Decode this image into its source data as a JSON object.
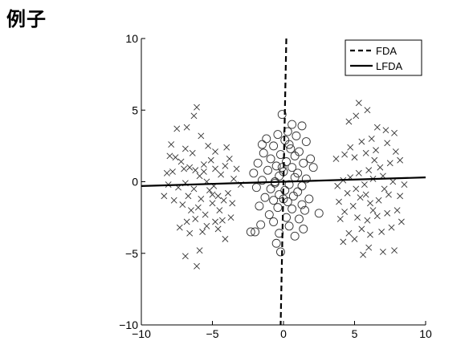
{
  "page": {
    "title": "例子"
  },
  "chart_data": {
    "type": "scatter",
    "title": "",
    "xlabel": "",
    "ylabel": "",
    "xlim": [
      -10,
      10
    ],
    "ylim": [
      -10,
      10
    ],
    "xticks": [
      -10,
      -5,
      0,
      5,
      10
    ],
    "yticks": [
      -10,
      -5,
      0,
      5,
      10
    ],
    "grid": false,
    "legend_position": "top-right",
    "lines": [
      {
        "name": "FDA",
        "style": "dashed",
        "points": [
          [
            0.2,
            10
          ],
          [
            -0.2,
            -10
          ]
        ]
      },
      {
        "name": "LFDA",
        "style": "solid",
        "points": [
          [
            -10,
            -0.3
          ],
          [
            10,
            0.3
          ]
        ]
      }
    ],
    "series": [
      {
        "marker": "x",
        "points": [
          [
            -7.5,
            3.7
          ],
          [
            -6.1,
            5.2
          ],
          [
            -6.3,
            4.6
          ],
          [
            -6.9,
            2.3
          ],
          [
            -7.6,
            1.7
          ],
          [
            -6.8,
            3.8
          ],
          [
            -5.8,
            3.2
          ],
          [
            -5.3,
            2.5
          ],
          [
            -4.8,
            2.1
          ],
          [
            -5.1,
            1.5
          ],
          [
            -5.6,
            1.2
          ],
          [
            -6.2,
            0.8
          ],
          [
            -7.0,
            0.9
          ],
          [
            -7.8,
            0.7
          ],
          [
            -8.2,
            0.6
          ],
          [
            -8.0,
            1.8
          ],
          [
            -7.2,
            1.4
          ],
          [
            -6.6,
            1.0
          ],
          [
            -5.9,
            0.4
          ],
          [
            -5.4,
            0.0
          ],
          [
            -4.9,
            -0.3
          ],
          [
            -4.4,
            0.5
          ],
          [
            -4.1,
            1.1
          ],
          [
            -3.8,
            1.6
          ],
          [
            -4.0,
            2.4
          ],
          [
            -3.5,
            0.2
          ],
          [
            -3.9,
            -0.8
          ],
          [
            -4.6,
            -1.0
          ],
          [
            -5.2,
            -0.6
          ],
          [
            -5.8,
            -1.2
          ],
          [
            -6.3,
            -0.5
          ],
          [
            -6.9,
            -0.1
          ],
          [
            -7.4,
            -0.4
          ],
          [
            -8.1,
            -0.2
          ],
          [
            -8.4,
            -1.0
          ],
          [
            -7.7,
            -1.3
          ],
          [
            -7.1,
            -1.6
          ],
          [
            -6.5,
            -2.0
          ],
          [
            -6.0,
            -1.8
          ],
          [
            -5.5,
            -2.3
          ],
          [
            -5.0,
            -1.5
          ],
          [
            -4.5,
            -2.0
          ],
          [
            -4.2,
            -1.3
          ],
          [
            -3.7,
            -2.5
          ],
          [
            -4.8,
            -2.8
          ],
          [
            -5.4,
            -3.1
          ],
          [
            -6.2,
            -2.6
          ],
          [
            -6.8,
            -2.8
          ],
          [
            -7.3,
            -3.2
          ],
          [
            -6.6,
            -3.6
          ],
          [
            -5.7,
            -3.5
          ],
          [
            -4.6,
            -3.3
          ],
          [
            -4.1,
            -4.0
          ],
          [
            -5.9,
            -4.8
          ],
          [
            -6.9,
            -5.2
          ],
          [
            -6.1,
            -5.9
          ],
          [
            -3.3,
            0.9
          ],
          [
            -3.0,
            -0.2
          ],
          [
            -3.6,
            -1.5
          ],
          [
            -7.9,
            2.6
          ],
          [
            -6.4,
            2.0
          ],
          [
            -5.6,
            0.7
          ],
          [
            -4.8,
            0.9
          ],
          [
            -6.7,
            -1.0
          ],
          [
            -5.0,
            -0.9
          ],
          [
            -4.3,
            -2.7
          ],
          [
            5.3,
            5.5
          ],
          [
            5.9,
            5.0
          ],
          [
            5.1,
            4.6
          ],
          [
            4.6,
            4.2
          ],
          [
            6.6,
            3.8
          ],
          [
            7.2,
            3.6
          ],
          [
            7.8,
            3.4
          ],
          [
            6.2,
            3.0
          ],
          [
            5.5,
            2.8
          ],
          [
            4.7,
            2.4
          ],
          [
            4.3,
            1.9
          ],
          [
            5.0,
            1.7
          ],
          [
            5.8,
            2.0
          ],
          [
            6.5,
            2.2
          ],
          [
            7.3,
            2.7
          ],
          [
            7.9,
            2.1
          ],
          [
            8.2,
            1.5
          ],
          [
            7.5,
            1.3
          ],
          [
            6.8,
            1.0
          ],
          [
            6.0,
            0.8
          ],
          [
            5.3,
            0.6
          ],
          [
            4.7,
            0.3
          ],
          [
            4.2,
            0.1
          ],
          [
            3.8,
            -0.3
          ],
          [
            4.5,
            -0.8
          ],
          [
            5.1,
            -0.5
          ],
          [
            5.7,
            -0.2
          ],
          [
            6.3,
            0.2
          ],
          [
            7.0,
            0.4
          ],
          [
            7.7,
            0.0
          ],
          [
            8.5,
            -0.2
          ],
          [
            8.2,
            -1.0
          ],
          [
            7.4,
            -0.9
          ],
          [
            6.7,
            -1.3
          ],
          [
            6.1,
            -1.5
          ],
          [
            5.4,
            -1.1
          ],
          [
            4.9,
            -1.7
          ],
          [
            4.3,
            -2.1
          ],
          [
            3.9,
            -1.4
          ],
          [
            5.2,
            -2.5
          ],
          [
            5.9,
            -2.7
          ],
          [
            6.6,
            -2.4
          ],
          [
            7.3,
            -2.2
          ],
          [
            8.0,
            -2.0
          ],
          [
            8.3,
            -2.8
          ],
          [
            7.6,
            -3.2
          ],
          [
            6.9,
            -3.5
          ],
          [
            6.1,
            -3.7
          ],
          [
            5.5,
            -3.3
          ],
          [
            4.6,
            -3.6
          ],
          [
            4.2,
            -4.2
          ],
          [
            5.0,
            -4.0
          ],
          [
            6.0,
            -4.6
          ],
          [
            7.0,
            -4.9
          ],
          [
            7.8,
            -4.8
          ],
          [
            5.6,
            -5.1
          ],
          [
            3.7,
            1.6
          ],
          [
            4.0,
            -2.6
          ],
          [
            6.4,
            1.5
          ],
          [
            7.1,
            -0.5
          ],
          [
            5.8,
            -0.9
          ],
          [
            6.3,
            -2.0
          ]
        ]
      },
      {
        "marker": "o",
        "points": [
          [
            -0.1,
            4.7
          ],
          [
            0.6,
            4.0
          ],
          [
            1.3,
            3.9
          ],
          [
            0.3,
            3.5
          ],
          [
            -0.4,
            3.3
          ],
          [
            0.9,
            3.2
          ],
          [
            -1.2,
            3.0
          ],
          [
            0.1,
            2.9
          ],
          [
            1.6,
            2.8
          ],
          [
            -0.7,
            2.5
          ],
          [
            0.5,
            2.3
          ],
          [
            1.1,
            2.1
          ],
          [
            -1.4,
            2.0
          ],
          [
            -0.2,
            1.9
          ],
          [
            0.8,
            1.8
          ],
          [
            1.9,
            1.6
          ],
          [
            -0.9,
            1.6
          ],
          [
            0.2,
            1.4
          ],
          [
            1.4,
            1.3
          ],
          [
            -1.8,
            1.3
          ],
          [
            -0.5,
            1.1
          ],
          [
            0.6,
            1.0
          ],
          [
            2.1,
            1.0
          ],
          [
            -1.1,
            0.8
          ],
          [
            0.0,
            0.7
          ],
          [
            1.0,
            0.6
          ],
          [
            -2.1,
            0.6
          ],
          [
            -0.3,
            0.4
          ],
          [
            0.8,
            0.3
          ],
          [
            1.6,
            0.2
          ],
          [
            -1.5,
            0.1
          ],
          [
            -0.6,
            -0.1
          ],
          [
            0.4,
            -0.2
          ],
          [
            1.3,
            -0.3
          ],
          [
            -1.9,
            -0.4
          ],
          [
            -0.9,
            -0.5
          ],
          [
            0.1,
            -0.6
          ],
          [
            1.0,
            -0.7
          ],
          [
            -0.3,
            -0.9
          ],
          [
            0.7,
            -1.0
          ],
          [
            -1.3,
            -1.1
          ],
          [
            1.8,
            -1.2
          ],
          [
            -0.7,
            -1.3
          ],
          [
            0.3,
            -1.4
          ],
          [
            1.3,
            -1.6
          ],
          [
            -1.7,
            -1.7
          ],
          [
            -0.4,
            -1.8
          ],
          [
            0.6,
            -1.9
          ],
          [
            2.5,
            -2.2
          ],
          [
            -1.0,
            -2.3
          ],
          [
            0.2,
            -2.5
          ],
          [
            1.1,
            -2.6
          ],
          [
            -0.7,
            -2.8
          ],
          [
            -1.6,
            -3.0
          ],
          [
            0.4,
            -3.1
          ],
          [
            1.4,
            -3.3
          ],
          [
            -2.0,
            -3.5
          ],
          [
            -0.3,
            -3.6
          ],
          [
            0.8,
            -3.8
          ],
          [
            -0.5,
            -4.3
          ],
          [
            -0.2,
            -4.9
          ],
          [
            -1.5,
            2.6
          ],
          [
            0.4,
            2.6
          ],
          [
            -0.6,
            0.0
          ],
          [
            1.5,
            -2.0
          ],
          [
            -2.3,
            -3.5
          ],
          [
            0.0,
            -1.2
          ],
          [
            -0.1,
            1.0
          ]
        ]
      }
    ]
  }
}
